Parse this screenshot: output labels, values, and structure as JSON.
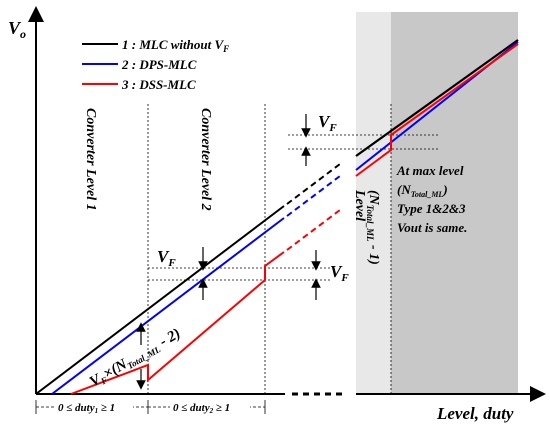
{
  "axes": {
    "y": "V",
    "y_sub": "o",
    "x": "Level, duty"
  },
  "legend": {
    "items": [
      {
        "label": "1 : MLC without V",
        "sub": "F",
        "color": "#000000"
      },
      {
        "label": "2 : DPS-MLC",
        "sub": "",
        "color": "#0000ff"
      },
      {
        "label": "3 : DSS-MLC",
        "sub": "",
        "color": "#ff0000"
      }
    ]
  },
  "levels": {
    "level1": "Converter Level 1",
    "level2": "Converter Level 2",
    "max_a": "(N",
    "max_sub": "Total_ML",
    "max_b": " - 1)",
    "max_word": "Level"
  },
  "vf": {
    "main": "V",
    "sub": "F"
  },
  "mult": {
    "a": "V",
    "a_sub": "F",
    "b": "×(N",
    "b_sub": "Total_ML",
    "c": " - 2)"
  },
  "note": {
    "line1": "At max level",
    "line2a": "(N",
    "line2_sub": "Total_ML",
    "line2b": ")",
    "line3": "Type 1&2&3",
    "line4": "Vout is same."
  },
  "duty": {
    "d1a": "0 ≤ duty",
    "d1_sub": "1",
    "d1b": " ≥ 1",
    "d2a": "0 ≤ duty",
    "d2_sub": "2",
    "d2b": " ≥ 1"
  },
  "colors": {
    "black": "#000000",
    "blue": "#0000ff",
    "red": "#ff0000",
    "shade_light": "#e8e8e8",
    "shade_dark": "#c8c8c8"
  }
}
